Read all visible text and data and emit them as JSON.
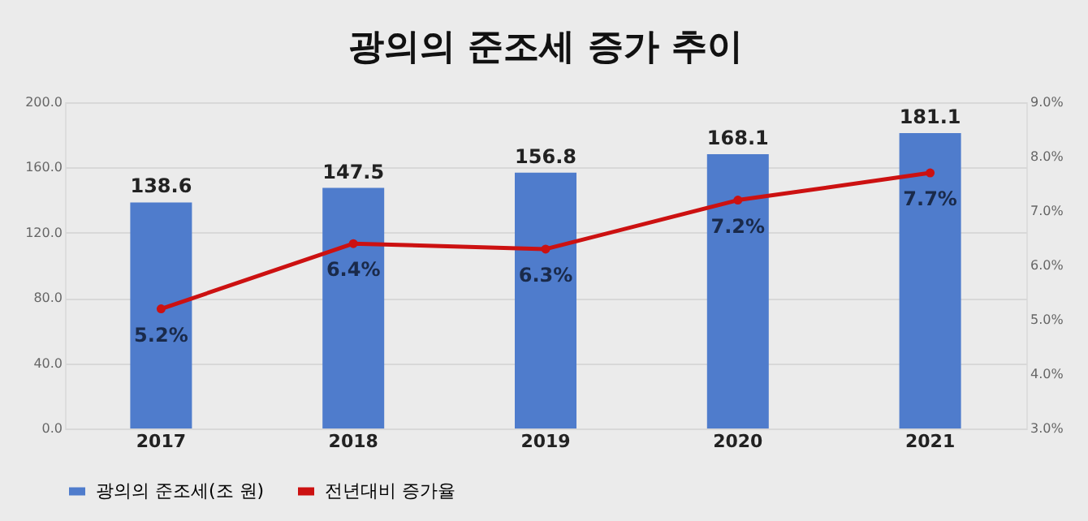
{
  "chart_data": {
    "type": "bar",
    "title": "광의의 준조세 증가 추이",
    "categories": [
      "2017",
      "2018",
      "2019",
      "2020",
      "2021"
    ],
    "series": [
      {
        "name": "광의의 준조세(조 원)",
        "color": "#4f7ccc",
        "values": [
          138.6,
          147.5,
          156.8,
          168.1,
          181.1
        ],
        "value_labels": [
          "138.6",
          "147.5",
          "156.8",
          "168.1",
          "181.1"
        ]
      },
      {
        "name": "전년대비 증가율",
        "type": "line",
        "axis": "y2",
        "color": "#cc1111",
        "values": [
          5.2,
          6.4,
          6.3,
          7.2,
          7.7
        ],
        "value_labels": [
          "5.2%",
          "6.4%",
          "6.3%",
          "7.2%",
          "7.7%"
        ]
      }
    ],
    "ylim": [
      0,
      200
    ],
    "yticks": [
      {
        "value": 0,
        "label": "0.0"
      },
      {
        "value": 40,
        "label": "40.0"
      },
      {
        "value": 80,
        "label": "80.0"
      },
      {
        "value": 120,
        "label": "120.0"
      },
      {
        "value": 160,
        "label": "160.0"
      },
      {
        "value": 200,
        "label": "200.0"
      }
    ],
    "y2lim": [
      3,
      9
    ],
    "y2ticks": [
      {
        "value": 3,
        "label": "3.0%"
      },
      {
        "value": 4,
        "label": "4.0%"
      },
      {
        "value": 5,
        "label": "5.0%"
      },
      {
        "value": 6,
        "label": "6.0%"
      },
      {
        "value": 7,
        "label": "7.0%"
      },
      {
        "value": 8,
        "label": "8.0%"
      },
      {
        "value": 9,
        "label": "9.0%"
      }
    ],
    "grid": "y",
    "legend": "bottom",
    "marker": "circle",
    "line_style": "solid"
  }
}
